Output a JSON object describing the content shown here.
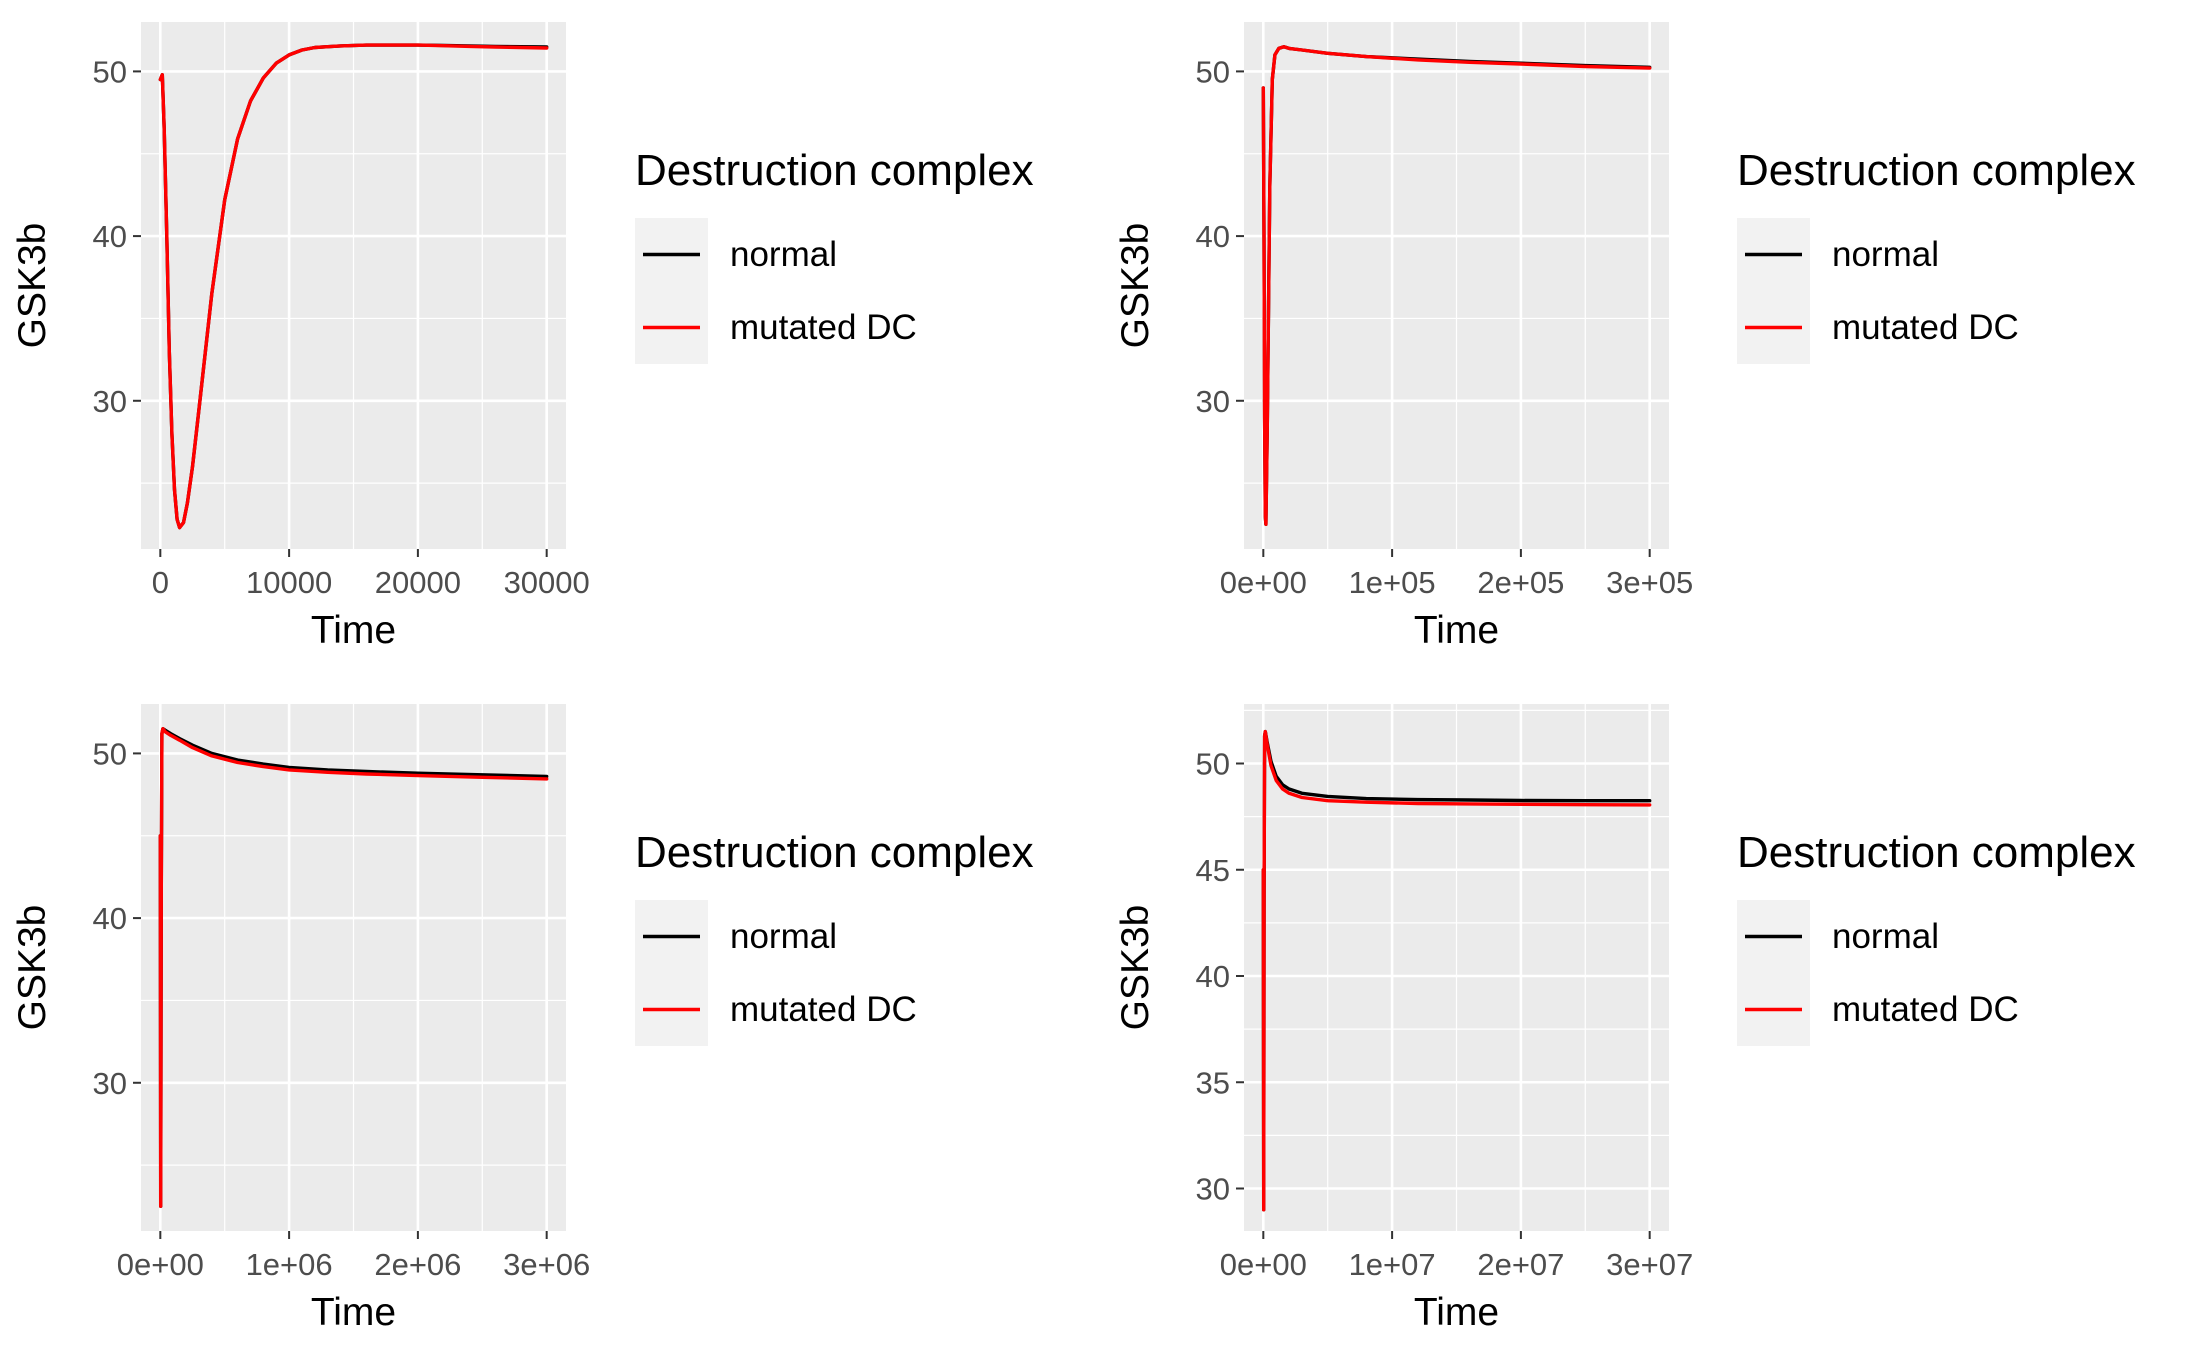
{
  "chart_data": [
    {
      "type": "line",
      "xlabel": "Time",
      "ylabel": "GSK3b",
      "xlim": [
        -1500,
        31500
      ],
      "ylim": [
        21,
        53
      ],
      "x_ticks": [
        0,
        10000,
        20000,
        30000
      ],
      "x_tick_labels": [
        "0",
        "10000",
        "20000",
        "30000"
      ],
      "y_ticks": [
        30,
        40,
        50
      ],
      "y_tick_labels": [
        "30",
        "40",
        "50"
      ],
      "grid": true,
      "legend": {
        "title": "Destruction complex",
        "position": "right",
        "entries": [
          "normal",
          "mutated DC"
        ]
      },
      "series": [
        {
          "name": "normal",
          "color": "#000000",
          "x": [
            0,
            150,
            300,
            500,
            700,
            900,
            1100,
            1300,
            1500,
            1800,
            2100,
            2500,
            3000,
            3500,
            4000,
            5000,
            6000,
            7000,
            8000,
            9000,
            10000,
            11000,
            12000,
            13000,
            14000,
            16000,
            18000,
            20000,
            22000,
            24000,
            26000,
            28000,
            30000
          ],
          "y": [
            49.5,
            49.8,
            46.5,
            40,
            33,
            28,
            24.6,
            22.8,
            22.3,
            22.6,
            23.8,
            26,
            29.5,
            33,
            36.5,
            42.2,
            45.9,
            48.2,
            49.6,
            50.5,
            51,
            51.3,
            51.45,
            51.5,
            51.55,
            51.6,
            51.6,
            51.6,
            51.58,
            51.55,
            51.52,
            51.5,
            51.48
          ]
        },
        {
          "name": "mutated DC",
          "color": "#ff0000",
          "x": [
            0,
            150,
            300,
            500,
            700,
            900,
            1100,
            1300,
            1500,
            1800,
            2100,
            2500,
            3000,
            3500,
            4000,
            5000,
            6000,
            7000,
            8000,
            9000,
            10000,
            11000,
            12000,
            13000,
            14000,
            16000,
            18000,
            20000,
            22000,
            24000,
            26000,
            28000,
            30000
          ],
          "y": [
            49.5,
            49.8,
            46.5,
            40,
            33,
            28,
            24.6,
            22.8,
            22.3,
            22.6,
            23.8,
            26,
            29.5,
            33,
            36.5,
            42.2,
            45.9,
            48.2,
            49.6,
            50.5,
            51,
            51.3,
            51.45,
            51.5,
            51.55,
            51.6,
            51.6,
            51.6,
            51.56,
            51.52,
            51.48,
            51.45,
            51.42
          ]
        }
      ]
    },
    {
      "type": "line",
      "xlabel": "Time",
      "ylabel": "GSK3b",
      "xlim": [
        -15000,
        315000
      ],
      "ylim": [
        21,
        53
      ],
      "x_ticks": [
        0,
        100000,
        200000,
        300000
      ],
      "x_tick_labels": [
        "0e+00",
        "1e+05",
        "2e+05",
        "3e+05"
      ],
      "y_ticks": [
        30,
        40,
        50
      ],
      "y_tick_labels": [
        "30",
        "40",
        "50"
      ],
      "grid": true,
      "legend": {
        "title": "Destruction complex",
        "position": "right",
        "entries": [
          "normal",
          "mutated DC"
        ]
      },
      "series": [
        {
          "name": "normal",
          "color": "#000000",
          "x": [
            0,
            500,
            1000,
            1500,
            2000,
            3000,
            5000,
            7000,
            9000,
            12000,
            16000,
            20000,
            30000,
            50000,
            80000,
            120000,
            160000,
            200000,
            250000,
            300000
          ],
          "y": [
            49,
            40,
            29,
            23,
            22.5,
            28,
            43,
            49.5,
            51,
            51.4,
            51.5,
            51.4,
            51.3,
            51.1,
            50.9,
            50.75,
            50.6,
            50.5,
            50.35,
            50.25
          ]
        },
        {
          "name": "mutated DC",
          "color": "#ff0000",
          "x": [
            0,
            500,
            1000,
            1500,
            2000,
            3000,
            5000,
            7000,
            9000,
            12000,
            16000,
            20000,
            30000,
            50000,
            80000,
            120000,
            160000,
            200000,
            250000,
            300000
          ],
          "y": [
            49,
            40,
            29,
            23,
            22.5,
            28,
            43,
            49.5,
            51,
            51.4,
            51.5,
            51.4,
            51.3,
            51.1,
            50.9,
            50.7,
            50.55,
            50.45,
            50.3,
            50.2
          ]
        }
      ]
    },
    {
      "type": "line",
      "xlabel": "Time",
      "ylabel": "GSK3b",
      "xlim": [
        -150000,
        3150000
      ],
      "ylim": [
        21,
        53
      ],
      "x_ticks": [
        0,
        1000000,
        2000000,
        3000000
      ],
      "x_tick_labels": [
        "0e+00",
        "1e+06",
        "2e+06",
        "3e+06"
      ],
      "y_ticks": [
        30,
        40,
        50
      ],
      "y_tick_labels": [
        "30",
        "40",
        "50"
      ],
      "grid": true,
      "legend": {
        "title": "Destruction complex",
        "position": "right",
        "entries": [
          "normal",
          "mutated DC"
        ]
      },
      "series": [
        {
          "name": "normal",
          "color": "#000000",
          "x": [
            0,
            3000,
            8000,
            12000,
            20000,
            40000,
            80000,
            150000,
            250000,
            400000,
            600000,
            800000,
            1000000,
            1300000,
            1600000,
            2000000,
            2500000,
            3000000
          ],
          "y": [
            45,
            22.5,
            42,
            51.2,
            51.5,
            51.4,
            51.2,
            50.9,
            50.5,
            50,
            49.6,
            49.35,
            49.15,
            49,
            48.9,
            48.8,
            48.7,
            48.6
          ]
        },
        {
          "name": "mutated DC",
          "color": "#ff0000",
          "x": [
            0,
            3000,
            8000,
            12000,
            20000,
            40000,
            80000,
            150000,
            250000,
            400000,
            600000,
            800000,
            1000000,
            1300000,
            1600000,
            2000000,
            2500000,
            3000000
          ],
          "y": [
            45,
            22.5,
            42,
            51.2,
            51.5,
            51.3,
            51.1,
            50.8,
            50.35,
            49.85,
            49.45,
            49.2,
            49,
            48.85,
            48.75,
            48.65,
            48.55,
            48.45
          ]
        }
      ]
    },
    {
      "type": "line",
      "xlabel": "Time",
      "ylabel": "GSK3b",
      "xlim": [
        -1500000,
        31500000
      ],
      "ylim": [
        28,
        52.8
      ],
      "x_ticks": [
        0,
        10000000,
        20000000,
        30000000
      ],
      "x_tick_labels": [
        "0e+00",
        "1e+07",
        "2e+07",
        "3e+07"
      ],
      "y_ticks": [
        30,
        35,
        40,
        45,
        50
      ],
      "y_tick_labels": [
        "30",
        "35",
        "40",
        "45",
        "50"
      ],
      "grid": true,
      "legend": {
        "title": "Destruction complex",
        "position": "right",
        "entries": [
          "normal",
          "mutated DC"
        ]
      },
      "series": [
        {
          "name": "normal",
          "color": "#000000",
          "x": [
            0,
            30000,
            60000,
            100000,
            150000,
            300000,
            600000,
            1000000,
            1500000,
            2000000,
            3000000,
            5000000,
            8000000,
            12000000,
            16000000,
            20000000,
            25000000,
            30000000
          ],
          "y": [
            45,
            29,
            44,
            51.3,
            51.5,
            51,
            50.1,
            49.4,
            49,
            48.8,
            48.6,
            48.45,
            48.35,
            48.3,
            48.28,
            48.26,
            48.25,
            48.25
          ]
        },
        {
          "name": "mutated DC",
          "color": "#ff0000",
          "x": [
            0,
            30000,
            60000,
            100000,
            150000,
            300000,
            600000,
            1000000,
            1500000,
            2000000,
            3000000,
            5000000,
            8000000,
            12000000,
            16000000,
            20000000,
            25000000,
            30000000
          ],
          "y": [
            45,
            29,
            44,
            51.3,
            51.5,
            50.9,
            49.9,
            49.2,
            48.8,
            48.6,
            48.4,
            48.25,
            48.18,
            48.12,
            48.1,
            48.08,
            48.06,
            48.05
          ]
        }
      ]
    }
  ]
}
